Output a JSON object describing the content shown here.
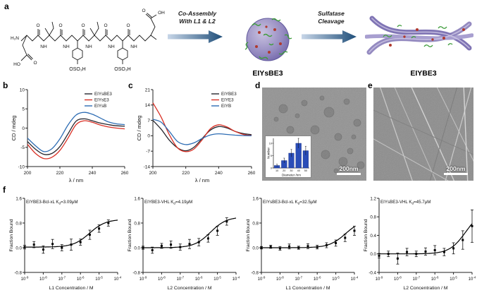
{
  "figure": {
    "panel_labels": {
      "a": "a",
      "b": "b",
      "c": "c",
      "d": "d",
      "e": "e",
      "f": "f"
    }
  },
  "panel_a": {
    "arrow1_line1": "Co-Assembly",
    "arrow1_line2": "With L1 & L2",
    "arrow2_line1": "Sulfatase",
    "arrow2_line2": "Cleavage",
    "assembly_label": "EIYsBE3",
    "cleaved_label": "EIYBE3",
    "structure_labels": {
      "amine": "H₂N",
      "nh": "NH",
      "o": "O",
      "ho": "HO",
      "oh": "OH",
      "sulfate": "OSO₃H"
    }
  },
  "panel_d": {
    "scale_bar": "200nm"
  },
  "panel_e": {
    "scale_bar": "200nm"
  },
  "chart_data": [
    {
      "id": "cd-spectrum-b",
      "type": "line",
      "x": [
        200,
        205,
        210,
        215,
        220,
        225,
        230,
        235,
        240,
        245,
        250,
        255,
        260
      ],
      "series": [
        {
          "name": "EIYsBE3",
          "color": "#26262e",
          "values": [
            -3.5,
            -5.5,
            -6.8,
            -6.6,
            -4.8,
            -1.5,
            1.8,
            2.4,
            1.9,
            1.3,
            0.9,
            0.6,
            0.5
          ]
        },
        {
          "name": "EIYsE3",
          "color": "#d93025",
          "values": [
            -4.2,
            -6.6,
            -7.9,
            -7.6,
            -5.8,
            -2.6,
            0.9,
            1.9,
            1.5,
            0.8,
            0.3,
            0.0,
            -0.2
          ]
        },
        {
          "name": "EIYsB",
          "color": "#2e6db4",
          "values": [
            -2.6,
            -4.6,
            -6.1,
            -5.4,
            -2.8,
            0.8,
            3.4,
            4.1,
            3.6,
            2.6,
            1.6,
            1.1,
            0.9
          ]
        }
      ],
      "xlabel": "λ / nm",
      "ylabel": "CD / mdeg",
      "ylim": [
        -10,
        10
      ],
      "yticks": [
        -10,
        -5,
        0,
        5,
        10
      ],
      "xticks": [
        200,
        220,
        240,
        260
      ],
      "legend_position": "top-right",
      "grid": false
    },
    {
      "id": "cd-spectrum-c",
      "type": "line",
      "x": [
        200,
        205,
        210,
        215,
        220,
        225,
        230,
        235,
        240,
        245,
        250,
        255,
        260
      ],
      "series": [
        {
          "name": "EIYBE3",
          "color": "#26262e",
          "values": [
            7.0,
            3.0,
            -2.0,
            -5.5,
            -6.8,
            -5.2,
            -1.2,
            2.6,
            4.2,
            3.6,
            2.0,
            1.0,
            0.5
          ]
        },
        {
          "name": "EIYE3",
          "color": "#d93025",
          "values": [
            15.0,
            8.5,
            0.5,
            -5.5,
            -7.2,
            -6.0,
            -1.8,
            3.2,
            5.0,
            4.0,
            2.0,
            0.6,
            0.1
          ]
        },
        {
          "name": "EIYB",
          "color": "#2e6db4",
          "values": [
            7.5,
            6.2,
            2.0,
            -2.6,
            -4.0,
            -3.2,
            -1.2,
            0.4,
            0.9,
            0.6,
            0.3,
            0.1,
            0.0
          ]
        }
      ],
      "xlabel": "λ / nm",
      "ylabel": "CD / mdeg",
      "ylim": [
        -14,
        21
      ],
      "yticks": [
        -14,
        -7,
        0,
        7,
        14,
        21
      ],
      "xticks": [
        200,
        220,
        240,
        260
      ],
      "legend_position": "top-right",
      "grid": false
    },
    {
      "id": "diameter-histogram",
      "type": "bar",
      "categories": [
        "10",
        "20",
        "30",
        "40",
        "50"
      ],
      "values": [
        1,
        3,
        6,
        10,
        7
      ],
      "errors": [
        0.5,
        1.0,
        1.5,
        2.0,
        1.8
      ],
      "yticks": [
        0,
        5,
        10
      ],
      "xlabel": "Diameter /nm",
      "ylabel": "Number",
      "color": "#2a4db8"
    },
    {
      "id": "binding-f1",
      "type": "binding",
      "title": "EIYBE3-Bcl-xL",
      "kd": "3.09μM",
      "xlabel": "L1 Concentration / M",
      "ylabel": "Fraction Bound",
      "ylim": [
        -0.8,
        1.6
      ],
      "yticks": [
        -0.8,
        0.0,
        0.8,
        1.6
      ],
      "xexp": [
        -9,
        -4
      ],
      "points": [
        [
          -9,
          0.02,
          0.06
        ],
        [
          -8.5,
          0.1,
          0.1
        ],
        [
          -8,
          -0.06,
          0.12
        ],
        [
          -7.5,
          0.12,
          0.15
        ],
        [
          -7,
          0.0,
          0.1
        ],
        [
          -6.5,
          0.1,
          0.18
        ],
        [
          -6,
          0.18,
          0.1
        ],
        [
          -5.5,
          0.42,
          0.15
        ],
        [
          -5,
          0.62,
          0.12
        ],
        [
          -4.5,
          0.8,
          0.1
        ]
      ],
      "fit": {
        "bottom": 0.02,
        "top": 0.92,
        "kd": 3.09e-06
      }
    },
    {
      "id": "binding-f2",
      "type": "binding",
      "title": "EIYBE3-VHL",
      "kd": "4.19μM",
      "xlabel": "L2 Concentration / M",
      "ylabel": "Fraction Bound",
      "ylim": [
        -0.8,
        1.6
      ],
      "yticks": [
        -0.8,
        0.0,
        0.8,
        1.6
      ],
      "xexp": [
        -9,
        -4
      ],
      "points": [
        [
          -9,
          0.0,
          0.05
        ],
        [
          -8.5,
          -0.08,
          0.1
        ],
        [
          -8,
          0.06,
          0.08
        ],
        [
          -7.5,
          0.1,
          0.12
        ],
        [
          -7,
          0.02,
          0.1
        ],
        [
          -6.5,
          0.12,
          0.15
        ],
        [
          -6,
          0.18,
          0.12
        ],
        [
          -5.5,
          0.3,
          0.12
        ],
        [
          -5,
          0.55,
          0.15
        ],
        [
          -4.5,
          0.85,
          0.12
        ]
      ],
      "fit": {
        "bottom": 0.0,
        "top": 1.0,
        "kd": 4.19e-06
      }
    },
    {
      "id": "binding-f3",
      "type": "binding",
      "title": "EIYsBE3-Bcl-xL",
      "kd": "32.5μM",
      "xlabel": "L1 Concentration / M",
      "ylabel": "Fraction Bound",
      "ylim": [
        -0.8,
        1.6
      ],
      "yticks": [
        -0.8,
        0.0,
        0.8,
        1.6
      ],
      "xexp": [
        -9,
        -4
      ],
      "points": [
        [
          -9,
          0.0,
          0.04
        ],
        [
          -8.5,
          0.03,
          0.05
        ],
        [
          -8,
          -0.02,
          0.06
        ],
        [
          -7.5,
          0.04,
          0.08
        ],
        [
          -7,
          0.0,
          0.05
        ],
        [
          -6.5,
          0.05,
          0.08
        ],
        [
          -6,
          0.02,
          0.06
        ],
        [
          -5.5,
          0.08,
          0.08
        ],
        [
          -5,
          0.15,
          0.1
        ],
        [
          -4.5,
          0.32,
          0.12
        ],
        [
          -4,
          0.55,
          0.15
        ]
      ],
      "fit": {
        "bottom": 0.0,
        "top": 0.9,
        "kd": 3.25e-05
      }
    },
    {
      "id": "binding-f4",
      "type": "binding",
      "title": "EIYsBE3-VHL",
      "kd": "45.7μM",
      "xlabel": "L2 Concentration / M",
      "ylabel": "Fraction Bound",
      "ylim": [
        -0.4,
        1.2
      ],
      "yticks": [
        -0.4,
        0.0,
        0.4,
        0.8,
        1.2
      ],
      "xexp": [
        -9,
        -4
      ],
      "points": [
        [
          -9,
          -0.04,
          0.05
        ],
        [
          -8.5,
          0.0,
          0.06
        ],
        [
          -8,
          -0.1,
          0.12
        ],
        [
          -7.5,
          0.04,
          0.08
        ],
        [
          -7,
          0.0,
          0.06
        ],
        [
          -6.5,
          0.05,
          0.08
        ],
        [
          -6,
          0.08,
          0.1
        ],
        [
          -5.5,
          0.04,
          0.08
        ],
        [
          -5,
          0.12,
          0.12
        ],
        [
          -4.5,
          0.3,
          0.2
        ],
        [
          -4,
          0.6,
          0.35
        ]
      ],
      "fit": {
        "bottom": 0.0,
        "top": 0.95,
        "kd": 4.57e-05
      }
    }
  ]
}
